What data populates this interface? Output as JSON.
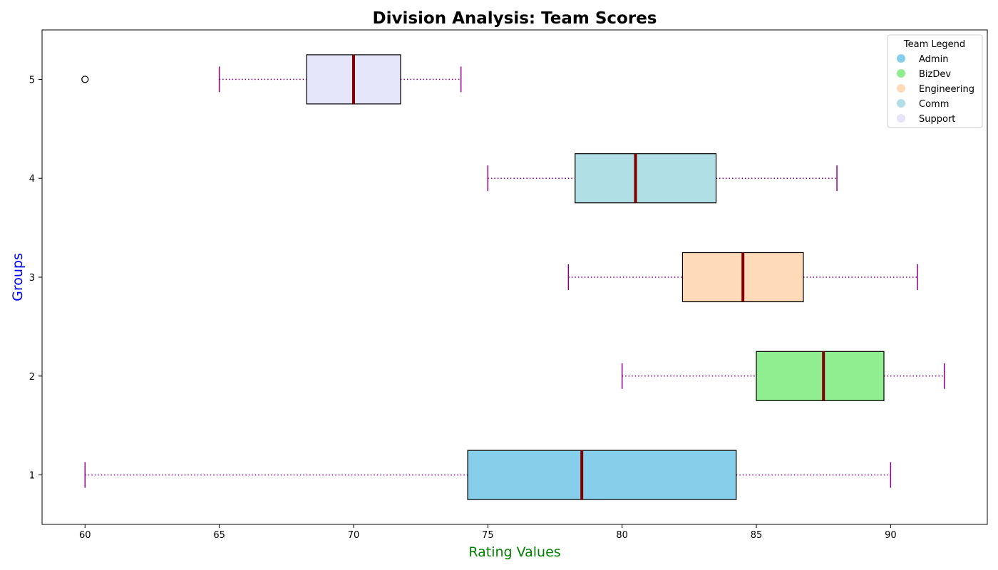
{
  "chart_data": {
    "type": "boxplot",
    "orientation": "horizontal",
    "title": "Division Analysis: Team Scores",
    "xlabel": "Rating Values",
    "ylabel": "Groups",
    "xlim": [
      58.4,
      93.6
    ],
    "ylim": [
      0.5,
      5.5
    ],
    "x_ticks": [
      60,
      65,
      70,
      75,
      80,
      85,
      90
    ],
    "y_ticks": [
      1,
      2,
      3,
      4,
      5
    ],
    "grid": false,
    "legend": {
      "title": "Team Legend",
      "placement": "top-right",
      "entries": [
        "Admin",
        "BizDev",
        "Engineering",
        "Comm",
        "Support"
      ]
    },
    "series": [
      {
        "name": "Admin",
        "group": 1,
        "whisker_low": 60,
        "q1": 74.25,
        "median": 78.5,
        "q3": 84.25,
        "whisker_high": 90,
        "outliers": [],
        "color": "#87ceeb"
      },
      {
        "name": "BizDev",
        "group": 2,
        "whisker_low": 80,
        "q1": 85,
        "median": 87.5,
        "q3": 89.75,
        "whisker_high": 92,
        "outliers": [],
        "color": "#90ee90"
      },
      {
        "name": "Engineering",
        "group": 3,
        "whisker_low": 78,
        "q1": 82.25,
        "median": 84.5,
        "q3": 86.75,
        "whisker_high": 91,
        "outliers": [],
        "color": "#ffdab9"
      },
      {
        "name": "Comm",
        "group": 4,
        "whisker_low": 75,
        "q1": 78.25,
        "median": 80.5,
        "q3": 83.5,
        "whisker_high": 88,
        "outliers": [],
        "color": "#b0e0e6"
      },
      {
        "name": "Support",
        "group": 5,
        "whisker_low": 65,
        "q1": 68.25,
        "median": 70,
        "q3": 71.75,
        "whisker_high": 74,
        "outliers": [
          60
        ],
        "color": "#e6e6fa"
      }
    ],
    "colors": {
      "median_line": "#800000",
      "whisker": "#8b008b",
      "xlabel": "#008000",
      "ylabel": "#0000ff"
    }
  }
}
